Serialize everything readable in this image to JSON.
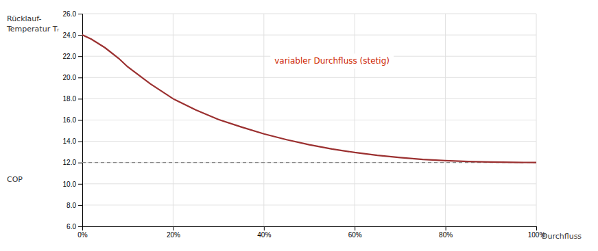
{
  "chart_data": {
    "type": "line",
    "xlabel": "Durchfluss",
    "ylabel": [
      "Rücklauf-",
      "Temperatur Tᵣ"
    ],
    "annotations": [
      {
        "text": "variabler Durchfluss (stetig)",
        "x": 0.55,
        "y": 21.5,
        "color": "#CC2200"
      },
      {
        "text": "COP"
      }
    ],
    "x": [
      0.0,
      0.02,
      0.05,
      0.08,
      0.1,
      0.15,
      0.2,
      0.25,
      0.3,
      0.35,
      0.4,
      0.45,
      0.5,
      0.55,
      0.6,
      0.65,
      0.7,
      0.75,
      0.8,
      0.85,
      0.9,
      0.95,
      1.0
    ],
    "values": [
      24.0,
      23.6,
      22.8,
      21.8,
      21.0,
      19.4,
      18.0,
      16.95,
      16.05,
      15.35,
      14.7,
      14.15,
      13.68,
      13.28,
      12.95,
      12.68,
      12.47,
      12.3,
      12.18,
      12.1,
      12.05,
      12.02,
      12.0
    ],
    "color": "#9B3030",
    "reference_y": 12.0,
    "xlim": [
      0,
      1.0
    ],
    "ylim": [
      6.0,
      26.0
    ],
    "xticks": [
      {
        "value": 0.0,
        "label": "0%"
      },
      {
        "value": 0.2,
        "label": "20%"
      },
      {
        "value": 0.4,
        "label": "40%"
      },
      {
        "value": 0.6,
        "label": "60%"
      },
      {
        "value": 0.8,
        "label": "80%"
      },
      {
        "value": 1.0,
        "label": "100%"
      }
    ],
    "yticks": [
      {
        "value": 6.0,
        "label": "6.0"
      },
      {
        "value": 8.0,
        "label": "8.0"
      },
      {
        "value": 10.0,
        "label": "10.0"
      },
      {
        "value": 12.0,
        "label": "12.0"
      },
      {
        "value": 14.0,
        "label": "14.0"
      },
      {
        "value": 16.0,
        "label": "16.0"
      },
      {
        "value": 18.0,
        "label": "18.0"
      },
      {
        "value": 20.0,
        "label": "20.0"
      },
      {
        "value": 22.0,
        "label": "22.0"
      },
      {
        "value": 24.0,
        "label": "24.0"
      },
      {
        "value": 26.0,
        "label": "26.0"
      }
    ],
    "grid": true
  }
}
